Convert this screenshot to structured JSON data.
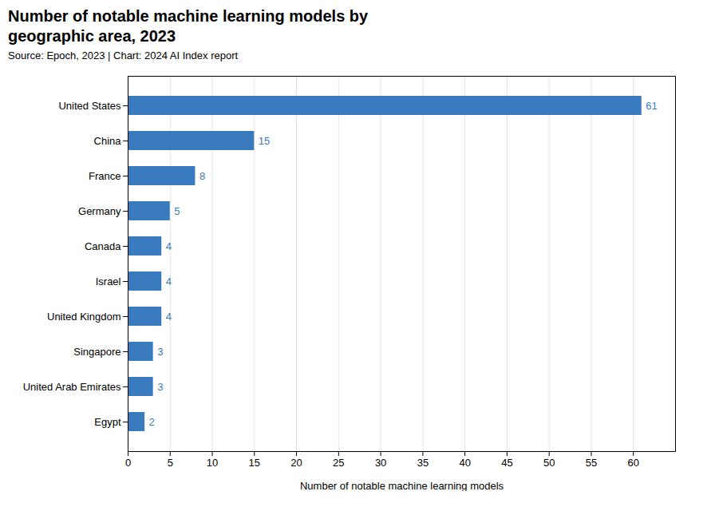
{
  "chart_data": {
    "type": "bar",
    "orientation": "horizontal",
    "title": "Number of notable machine learning models by\ngeographic area, 2023",
    "subtitle": "Source: Epoch, 2023 | Chart: 2024 AI Index report",
    "xlabel": "Number of notable machine learning models",
    "categories": [
      "United States",
      "China",
      "France",
      "Germany",
      "Canada",
      "Israel",
      "United Kingdom",
      "Singapore",
      "United Arab Emirates",
      "Egypt"
    ],
    "values": [
      61,
      15,
      8,
      5,
      4,
      4,
      4,
      3,
      3,
      2
    ],
    "color": "#3a7bbf",
    "xlim": [
      0,
      65
    ],
    "xticks": [
      0,
      5,
      10,
      15,
      20,
      25,
      30,
      35,
      40,
      45,
      50,
      55,
      60
    ],
    "grid": true,
    "data_labels": true
  }
}
